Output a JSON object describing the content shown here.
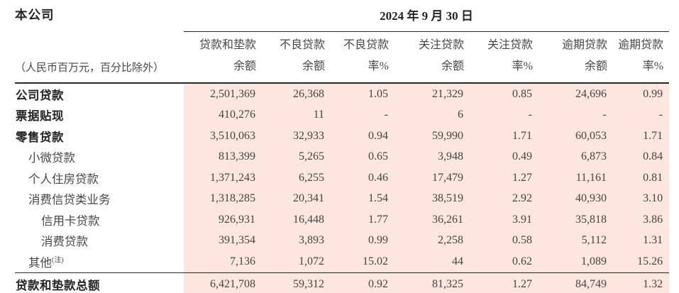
{
  "header": {
    "company_label": "本公司",
    "date_header": "2024 年 9 月 30 日",
    "unit_note": "（人民币百万元，百分比除外）"
  },
  "columns": [
    {
      "line1": "贷款和垫款",
      "line2": "余额"
    },
    {
      "line1": "不良贷款",
      "line2": "余额"
    },
    {
      "line1": "不良贷款",
      "line2": "率%"
    },
    {
      "line1": "关注贷款",
      "line2": "余额"
    },
    {
      "line1": "关注贷款",
      "line2": "率%"
    },
    {
      "line1": "逾期贷款",
      "line2": "余额"
    },
    {
      "line1": "逾期贷款",
      "line2": "率%"
    }
  ],
  "rows": [
    {
      "label": "公司贷款",
      "indent": 0,
      "bold": true,
      "values": [
        "2,501,369",
        "26,368",
        "1.05",
        "21,329",
        "0.85",
        "24,696",
        "0.99"
      ]
    },
    {
      "label": "票据贴现",
      "indent": 0,
      "bold": true,
      "values": [
        "410,276",
        "11",
        "-",
        "6",
        "-",
        "-",
        "-"
      ]
    },
    {
      "label": "零售贷款",
      "indent": 0,
      "bold": true,
      "values": [
        "3,510,063",
        "32,933",
        "0.94",
        "59,990",
        "1.71",
        "60,053",
        "1.71"
      ]
    },
    {
      "label": "小微贷款",
      "indent": 1,
      "bold": false,
      "values": [
        "813,399",
        "5,265",
        "0.65",
        "3,948",
        "0.49",
        "6,873",
        "0.84"
      ]
    },
    {
      "label": "个人住房贷款",
      "indent": 1,
      "bold": false,
      "values": [
        "1,371,243",
        "6,255",
        "0.46",
        "17,479",
        "1.27",
        "11,161",
        "0.81"
      ]
    },
    {
      "label": "消费信贷类业务",
      "indent": 1,
      "bold": false,
      "values": [
        "1,318,285",
        "20,341",
        "1.54",
        "38,519",
        "2.92",
        "40,930",
        "3.10"
      ]
    },
    {
      "label": "信用卡贷款",
      "indent": 2,
      "bold": false,
      "values": [
        "926,931",
        "16,448",
        "1.77",
        "36,261",
        "3.91",
        "35,818",
        "3.86"
      ]
    },
    {
      "label": "消费贷款",
      "indent": 2,
      "bold": false,
      "values": [
        "391,354",
        "3,893",
        "0.99",
        "2,258",
        "0.58",
        "5,112",
        "1.31"
      ]
    },
    {
      "label": "其他",
      "label_superscript": "(注)",
      "indent": 1,
      "bold": false,
      "values": [
        "7,136",
        "1,072",
        "15.02",
        "44",
        "0.62",
        "1,089",
        "15.26"
      ]
    }
  ],
  "total_row": {
    "label": "贷款和垫款总额",
    "values": [
      "6,421,708",
      "59,312",
      "0.92",
      "81,325",
      "1.27",
      "84,749",
      "1.32"
    ]
  },
  "colors": {
    "highlight_bg": "#fce6de",
    "text_strong": "#242424",
    "text_regular": "#4a4646",
    "rule_line": "#262626"
  }
}
